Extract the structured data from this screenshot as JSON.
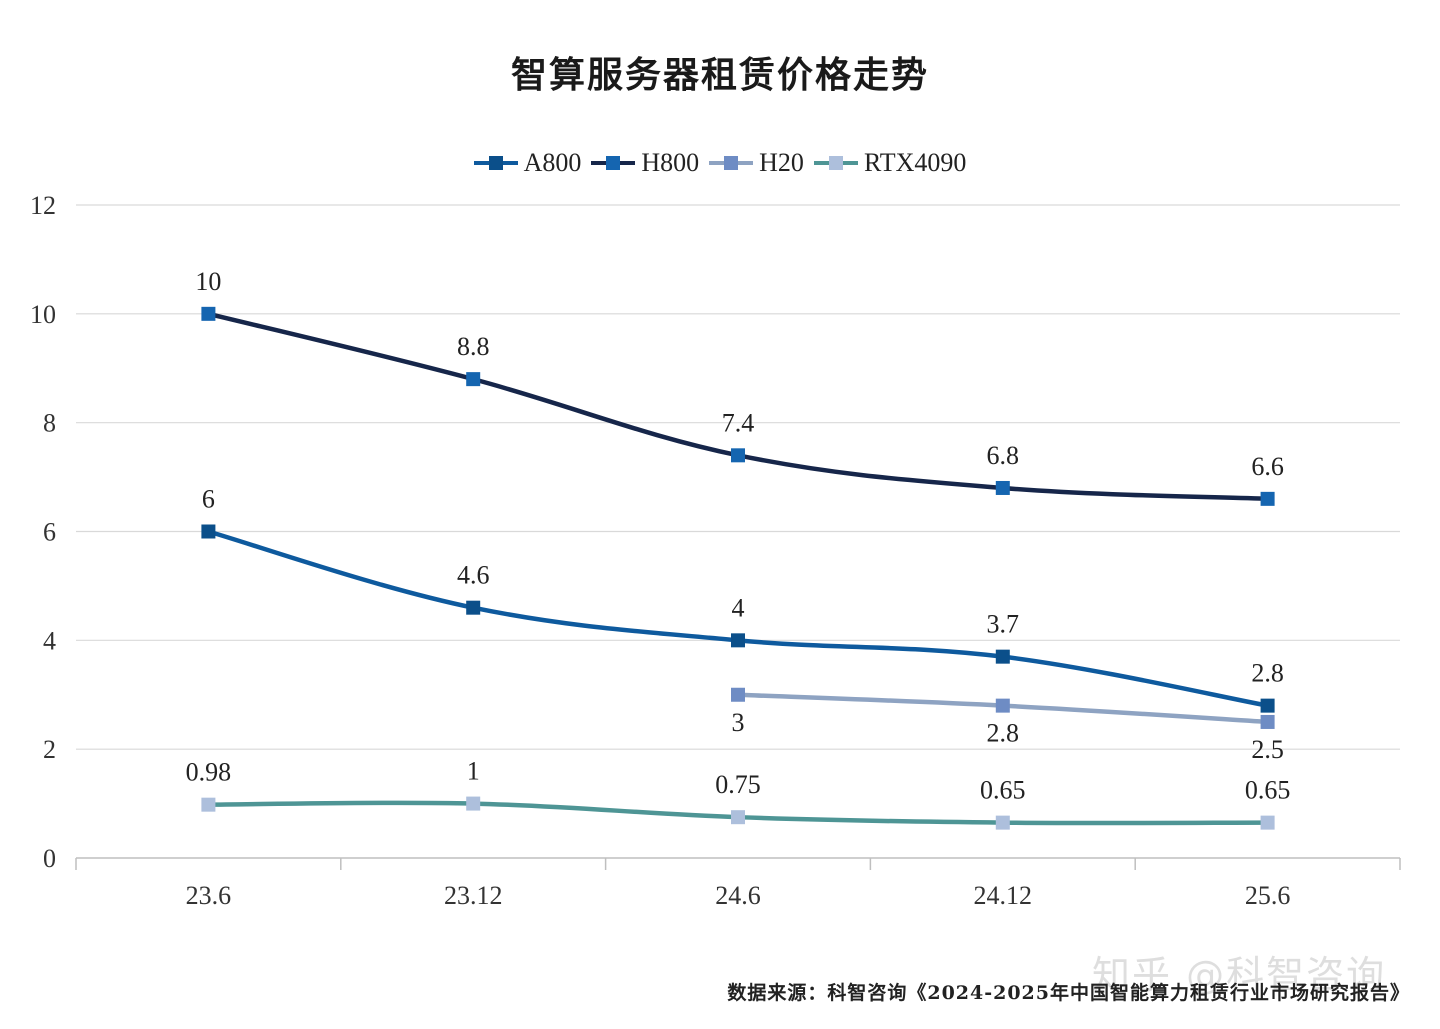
{
  "chart_data": {
    "type": "line",
    "title": "智算服务器租赁价格走势",
    "xlabel": "",
    "ylabel": "",
    "categories": [
      "23.6",
      "23.12",
      "24.6",
      "24.12",
      "25.6"
    ],
    "ylim": [
      0,
      12
    ],
    "yticks": [
      0,
      2,
      4,
      6,
      8,
      10,
      12
    ],
    "grid": true,
    "legend_position": "top-center",
    "series": [
      {
        "name": "A800",
        "values": [
          6,
          4.6,
          4,
          3.7,
          2.8
        ],
        "labels": [
          "6",
          "4.6",
          "4",
          "3.7",
          "2.8"
        ],
        "line_color": "#0e5a9e",
        "marker_color": "#0b4f8a",
        "label_position": "above"
      },
      {
        "name": "H800",
        "values": [
          10,
          8.8,
          7.4,
          6.8,
          6.6
        ],
        "labels": [
          "10",
          "8.8",
          "7.4",
          "6.8",
          "6.6"
        ],
        "line_color": "#16264a",
        "marker_color": "#1565b0",
        "label_position": "above"
      },
      {
        "name": "H20",
        "values": [
          null,
          null,
          3,
          2.8,
          2.5
        ],
        "labels": [
          "",
          "",
          "3",
          "2.8",
          "2.5"
        ],
        "line_color": "#8ea3c2",
        "marker_color": "#6e8cc4",
        "label_position": "below"
      },
      {
        "name": "RTX4090",
        "values": [
          0.98,
          1,
          0.75,
          0.65,
          0.65
        ],
        "labels": [
          "0.98",
          "1",
          "0.75",
          "0.65",
          "0.65"
        ],
        "line_color": "#4e9595",
        "marker_color": "#adbfdc",
        "label_position": "above"
      }
    ]
  },
  "footer": {
    "source": "数据来源：科智咨询《2024-2025年中国智能算力租赁行业市场研究报告》",
    "watermark": "知乎 @科智咨询"
  }
}
